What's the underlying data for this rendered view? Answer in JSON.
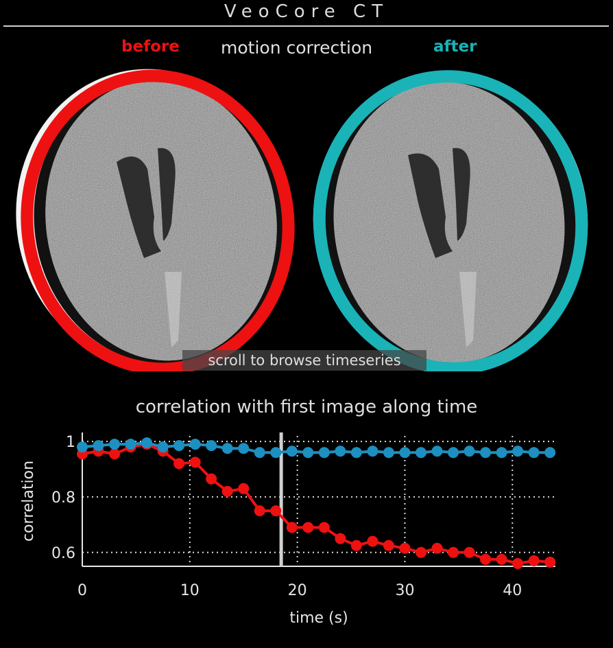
{
  "window": {
    "title": "VeoCore  CT"
  },
  "legend": {
    "before": "before",
    "middle": "motion correction",
    "after": "after"
  },
  "colors": {
    "before": "#ee1111",
    "after": "#19b3b8",
    "series_after": "#1d8fc0",
    "background": "#000000"
  },
  "overlay": {
    "hint": "scroll to browse timeseries"
  },
  "chart_data": {
    "type": "line",
    "title": "correlation with first image along time",
    "xlabel": "time (s)",
    "ylabel": "correlation",
    "xlim": [
      0,
      44
    ],
    "ylim": [
      0.55,
      1.02
    ],
    "xticks": [
      "0",
      "10",
      "20",
      "30",
      "40"
    ],
    "xtick_values": [
      0,
      10,
      20,
      30,
      40
    ],
    "yticks": [
      "0.6",
      "0.8",
      "1"
    ],
    "ytick_values": [
      0.6,
      0.8,
      1.0
    ],
    "grid": true,
    "cursor_x": 18.5,
    "x": [
      0,
      1.5,
      3,
      4.5,
      6,
      7.5,
      9,
      10.5,
      12,
      13.5,
      15,
      16.5,
      18,
      19.5,
      21,
      22.5,
      24,
      25.5,
      27,
      28.5,
      30,
      31.5,
      33,
      34.5,
      36,
      37.5,
      39,
      40.5,
      42,
      43.5
    ],
    "series": [
      {
        "name": "before",
        "color": "#ee1111",
        "values": [
          0.955,
          0.965,
          0.955,
          0.98,
          0.99,
          0.965,
          0.92,
          0.925,
          0.865,
          0.82,
          0.83,
          0.75,
          0.75,
          0.69,
          0.69,
          0.69,
          0.65,
          0.625,
          0.64,
          0.625,
          0.615,
          0.6,
          0.615,
          0.6,
          0.6,
          0.575,
          0.575,
          0.56,
          0.57,
          0.565
        ]
      },
      {
        "name": "after",
        "color": "#1d8fc0",
        "values": [
          0.98,
          0.985,
          0.99,
          0.99,
          0.995,
          0.98,
          0.985,
          0.99,
          0.985,
          0.975,
          0.975,
          0.96,
          0.96,
          0.965,
          0.96,
          0.96,
          0.965,
          0.96,
          0.965,
          0.96,
          0.96,
          0.96,
          0.965,
          0.96,
          0.965,
          0.96,
          0.96,
          0.965,
          0.96,
          0.96
        ]
      }
    ]
  }
}
